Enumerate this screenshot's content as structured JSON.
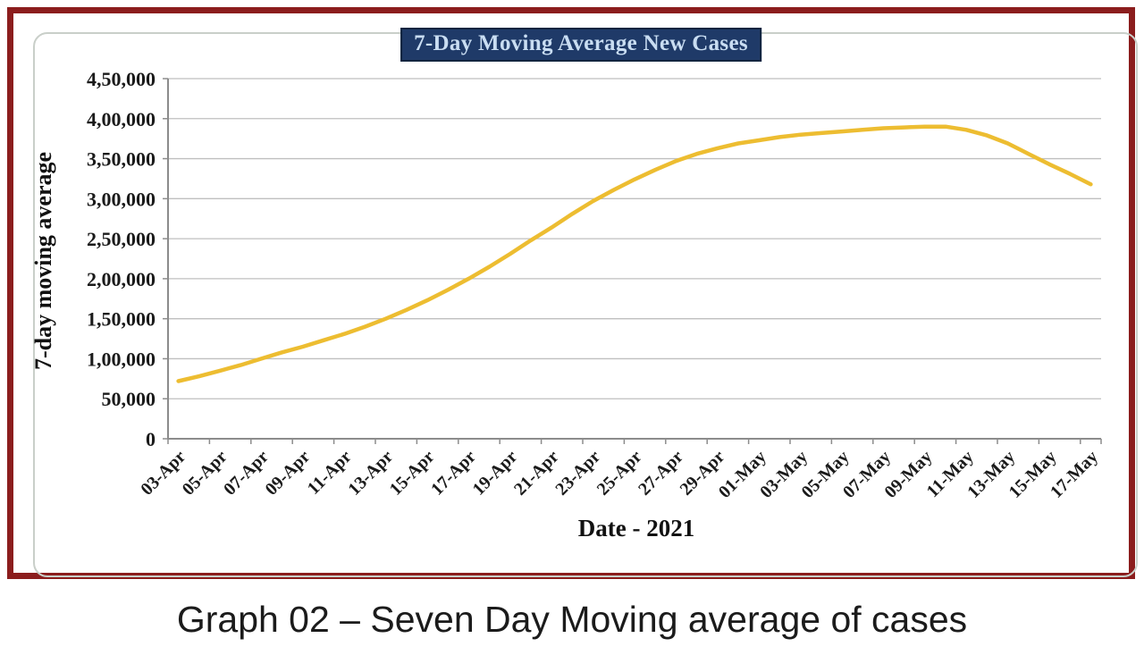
{
  "page": {
    "caption": "Graph 02 – Seven Day Moving average of cases"
  },
  "colors": {
    "frame_border": "#8B1D1D",
    "inner_border": "#C9CFC9",
    "title_background": "#1F3A68",
    "title_text": "#C9DDF2",
    "line": "#EDBD31",
    "gridline": "#BFBFBF",
    "axis": "#8C8C8C",
    "tick_text": "#1a1a1a"
  },
  "chart_data": {
    "type": "line",
    "title": "7-Day Moving Average New Cases",
    "xlabel": "Date - 2021",
    "ylabel": "7-day moving average",
    "legend": "none",
    "grid": "horizontal",
    "ylim": [
      0,
      450000
    ],
    "y_ticks": [
      0,
      50000,
      100000,
      150000,
      200000,
      250000,
      300000,
      350000,
      400000,
      450000
    ],
    "y_tick_labels": [
      "0",
      "50,000",
      "1,00,000",
      "1,50,000",
      "2,00,000",
      "2,50,000",
      "3,00,000",
      "3,50,000",
      "4,00,000",
      "4,50,000"
    ],
    "x": [
      "03-Apr",
      "04-Apr",
      "05-Apr",
      "06-Apr",
      "07-Apr",
      "08-Apr",
      "09-Apr",
      "10-Apr",
      "11-Apr",
      "12-Apr",
      "13-Apr",
      "14-Apr",
      "15-Apr",
      "16-Apr",
      "17-Apr",
      "18-Apr",
      "19-Apr",
      "20-Apr",
      "21-Apr",
      "22-Apr",
      "23-Apr",
      "24-Apr",
      "25-Apr",
      "26-Apr",
      "27-Apr",
      "28-Apr",
      "29-Apr",
      "30-Apr",
      "01-May",
      "02-May",
      "03-May",
      "04-May",
      "05-May",
      "06-May",
      "07-May",
      "08-May",
      "09-May",
      "10-May",
      "11-May",
      "12-May",
      "13-May",
      "14-May",
      "15-May",
      "16-May",
      "17-May"
    ],
    "x_tick_labels": [
      "03-Apr",
      "05-Apr",
      "07-Apr",
      "09-Apr",
      "11-Apr",
      "13-Apr",
      "15-Apr",
      "17-Apr",
      "19-Apr",
      "21-Apr",
      "23-Apr",
      "25-Apr",
      "27-Apr",
      "29-Apr",
      "01-May",
      "03-May",
      "05-May",
      "07-May",
      "09-May",
      "11-May",
      "13-May",
      "15-May",
      "17-May"
    ],
    "values": [
      72000,
      78000,
      85000,
      92000,
      100000,
      108000,
      115000,
      123000,
      131000,
      140000,
      150000,
      161000,
      173000,
      186000,
      200000,
      215000,
      231000,
      248000,
      264000,
      281000,
      297000,
      311000,
      324000,
      336000,
      347000,
      356000,
      363000,
      369000,
      373000,
      377000,
      380000,
      382000,
      384000,
      386000,
      388000,
      389000,
      390000,
      390000,
      386000,
      379000,
      369000,
      356000,
      343000,
      331000,
      318000
    ]
  }
}
